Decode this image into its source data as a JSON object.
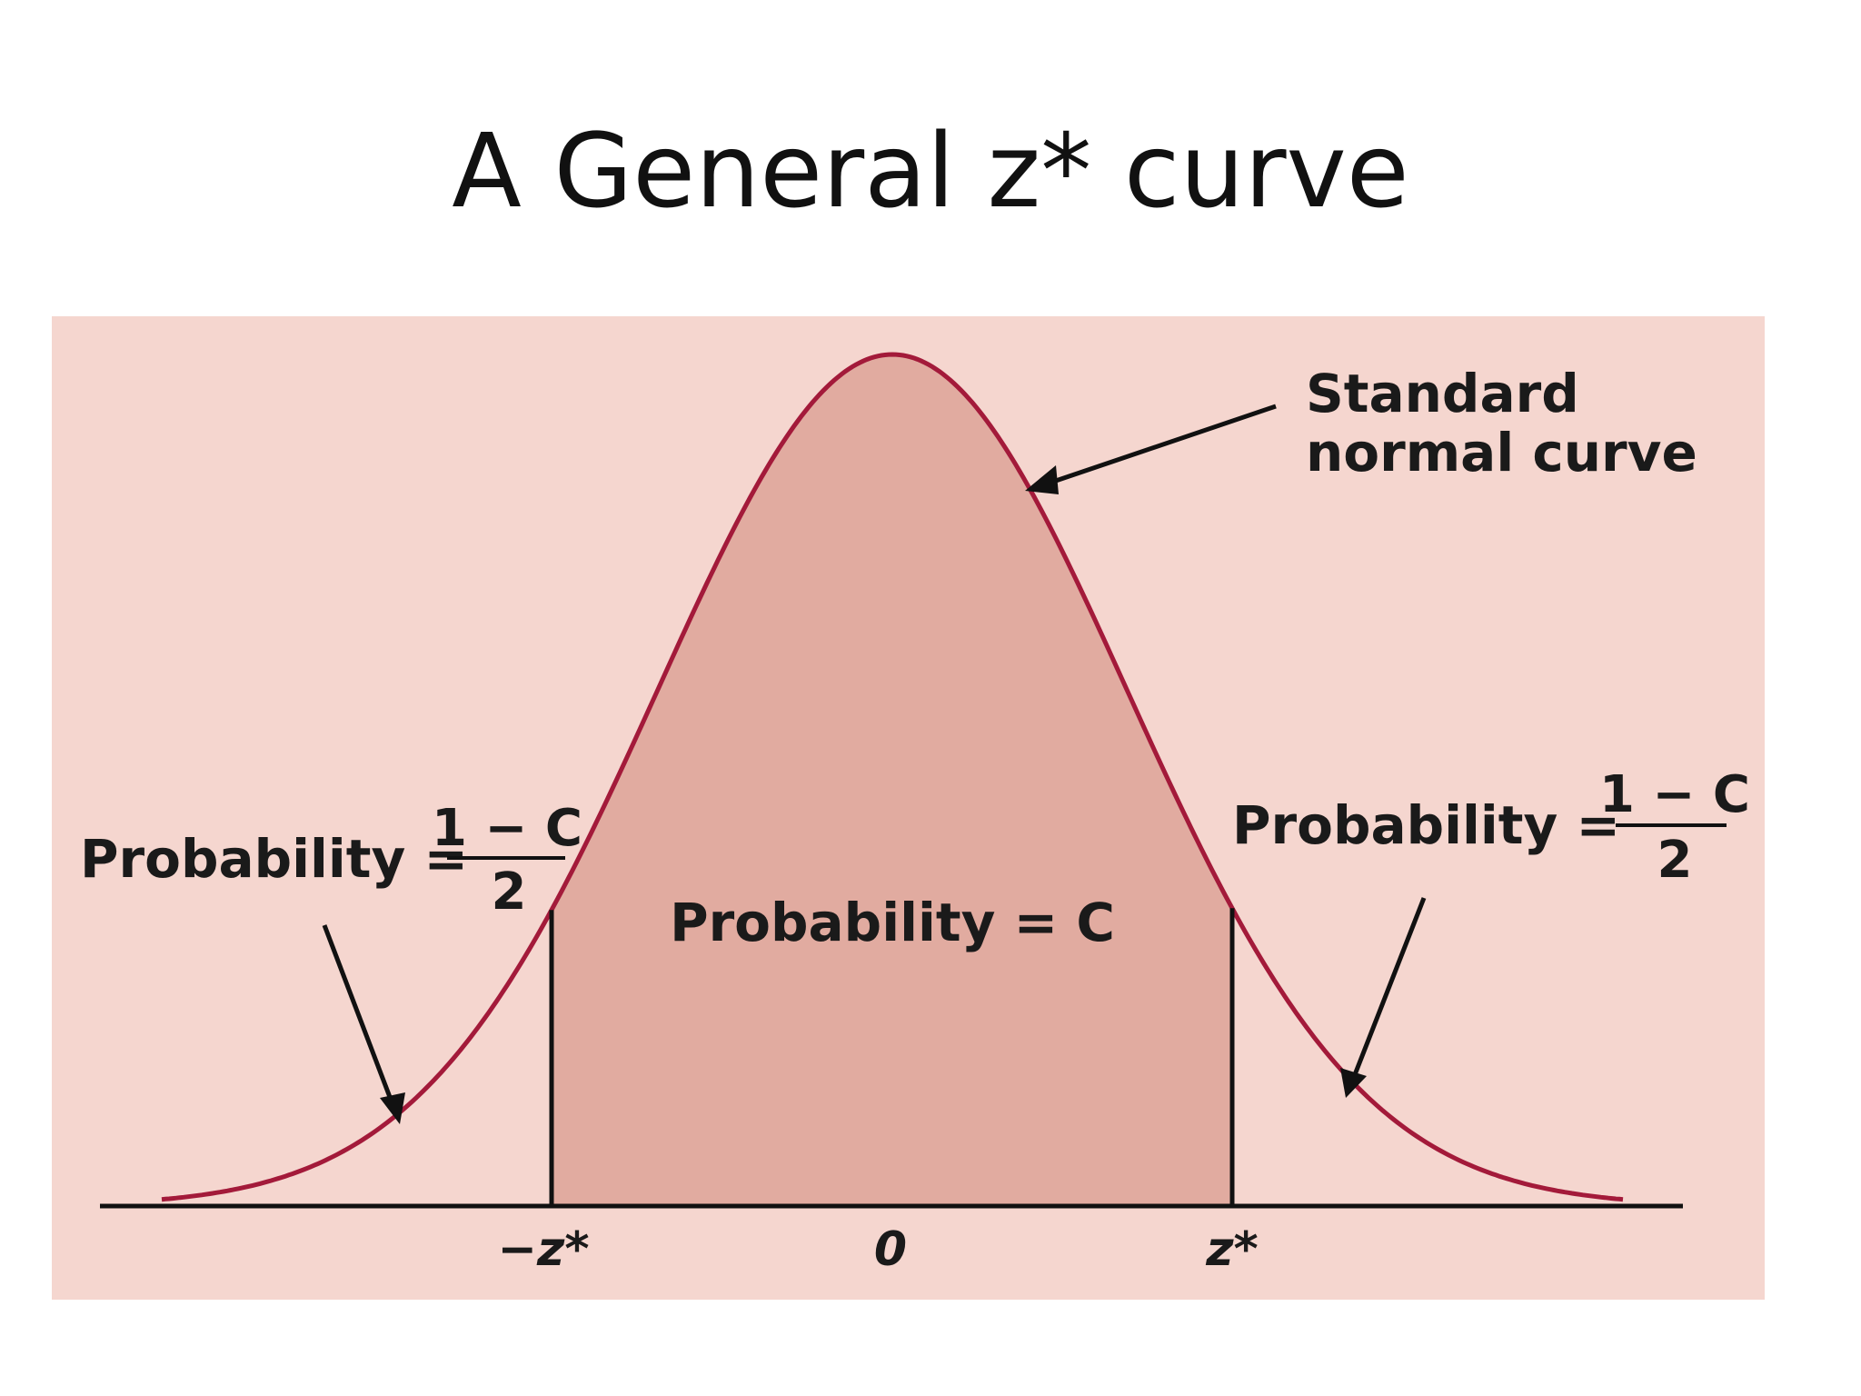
{
  "title": "A General z* curve",
  "colors": {
    "panel": "#f5d6cf",
    "curve": "#a31a3a",
    "central_fill": "#e1aba0",
    "axis": "#111111"
  },
  "labels": {
    "curve_name_line1": "Standard",
    "curve_name_line2": "normal curve",
    "center_probability": "Probability = C",
    "left_probability_prefix": "Probability =",
    "right_probability_prefix": "Probability =",
    "fraction_numerator": "1 − C",
    "fraction_denominator": "2",
    "tick_left": "−z*",
    "tick_center": "0",
    "tick_right": "z*"
  },
  "chart_data": {
    "type": "area",
    "curve": "standard normal",
    "shaded_region": "between −z* and z*",
    "x_ticks": [
      "−z*",
      "0",
      "z*"
    ]
  }
}
